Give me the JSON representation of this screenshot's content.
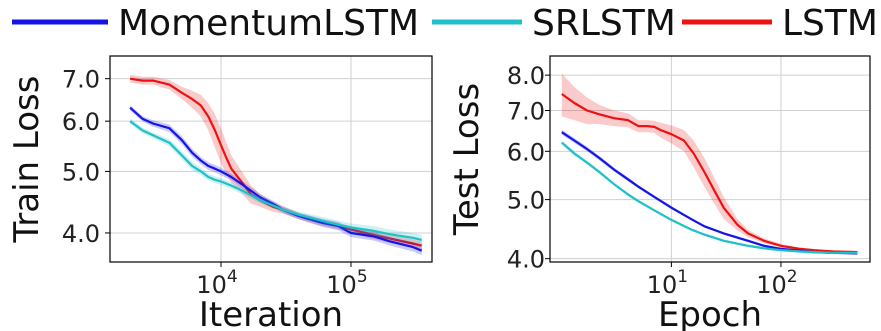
{
  "legend": [
    {
      "name": "MomentumLSTM",
      "color": "#1414e6"
    },
    {
      "name": "SRLSTM",
      "color": "#20c0c8"
    },
    {
      "name": "LSTM",
      "color": "#ee1111"
    }
  ],
  "chart_data": [
    {
      "type": "line",
      "xlabel": "Iteration",
      "ylabel": "Train Loss",
      "xscale": "log",
      "yscale": "log",
      "xlim": [
        1400,
        420000
      ],
      "ylim": [
        3.6,
        7.6
      ],
      "xticks": [
        {
          "value": 10000,
          "base": "10",
          "exp": "4"
        },
        {
          "value": 100000,
          "base": "10",
          "exp": "5"
        }
      ],
      "yticks": [
        {
          "value": 4.0,
          "label": "4.0"
        },
        {
          "value": 5.0,
          "label": "5.0"
        },
        {
          "value": 6.0,
          "label": "6.0"
        },
        {
          "value": 7.0,
          "label": "7.0"
        }
      ],
      "grid": true,
      "series": [
        {
          "name": "LSTM",
          "color": "#ee1111",
          "x": [
            2000,
            2500,
            3000,
            4000,
            5000,
            6000,
            7000,
            8000,
            9000,
            10000,
            11000,
            12000,
            14000,
            17000,
            20000,
            25000,
            30000,
            40000,
            60000,
            80000,
            100000,
            150000,
            200000,
            300000,
            350000
          ],
          "y": [
            7.0,
            6.95,
            6.95,
            6.85,
            6.65,
            6.5,
            6.35,
            6.1,
            5.8,
            5.5,
            5.25,
            5.05,
            4.85,
            4.6,
            4.5,
            4.4,
            4.35,
            4.25,
            4.15,
            4.1,
            4.05,
            3.97,
            3.92,
            3.85,
            3.82
          ],
          "band": [
            0.1,
            0.1,
            0.1,
            0.12,
            0.15,
            0.2,
            0.25,
            0.3,
            0.35,
            0.35,
            0.3,
            0.25,
            0.2,
            0.15,
            0.1,
            0.08,
            0.06,
            0.05,
            0.05,
            0.05,
            0.05,
            0.06,
            0.06,
            0.06,
            0.06
          ]
        },
        {
          "name": "MomentumLSTM",
          "color": "#1414e6",
          "x": [
            2000,
            2500,
            3000,
            4000,
            5000,
            6000,
            7000,
            8000,
            9000,
            10000,
            12000,
            15000,
            20000,
            25000,
            30000,
            40000,
            60000,
            80000,
            100000,
            150000,
            200000,
            300000,
            350000
          ],
          "y": [
            6.3,
            6.05,
            5.95,
            5.85,
            5.6,
            5.35,
            5.2,
            5.1,
            5.05,
            5.0,
            4.9,
            4.75,
            4.55,
            4.45,
            4.35,
            4.25,
            4.15,
            4.1,
            4.0,
            3.95,
            3.88,
            3.8,
            3.75
          ],
          "band": [
            0.06,
            0.06,
            0.07,
            0.08,
            0.08,
            0.08,
            0.07,
            0.07,
            0.07,
            0.07,
            0.06,
            0.06,
            0.06,
            0.05,
            0.05,
            0.05,
            0.06,
            0.06,
            0.06,
            0.06,
            0.06,
            0.06,
            0.06
          ]
        },
        {
          "name": "SRLSTM",
          "color": "#20c0c8",
          "x": [
            2000,
            2500,
            3000,
            4000,
            5000,
            6000,
            7000,
            8000,
            9000,
            10000,
            12000,
            15000,
            20000,
            25000,
            30000,
            40000,
            60000,
            80000,
            100000,
            150000,
            200000,
            300000,
            350000
          ],
          "y": [
            6.0,
            5.8,
            5.7,
            5.55,
            5.3,
            5.1,
            5.0,
            4.9,
            4.85,
            4.82,
            4.75,
            4.65,
            4.5,
            4.42,
            4.35,
            4.27,
            4.18,
            4.12,
            4.08,
            4.03,
            3.98,
            3.93,
            3.9
          ],
          "band": [
            0.06,
            0.06,
            0.06,
            0.07,
            0.08,
            0.08,
            0.07,
            0.06,
            0.06,
            0.06,
            0.06,
            0.06,
            0.05,
            0.05,
            0.05,
            0.05,
            0.06,
            0.06,
            0.06,
            0.07,
            0.07,
            0.07,
            0.07
          ]
        }
      ]
    },
    {
      "type": "line",
      "xlabel": "Epoch",
      "ylabel": "Test Loss",
      "xscale": "log",
      "yscale": "log",
      "xlim": [
        0.78,
        650
      ],
      "ylim": [
        3.95,
        8.6
      ],
      "xticks": [
        {
          "value": 10,
          "base": "10",
          "exp": "1"
        },
        {
          "value": 100,
          "base": "10",
          "exp": "2"
        }
      ],
      "yticks": [
        {
          "value": 4.0,
          "label": "4.0"
        },
        {
          "value": 5.0,
          "label": "5.0"
        },
        {
          "value": 6.0,
          "label": "6.0"
        },
        {
          "value": 7.0,
          "label": "7.0"
        },
        {
          "value": 8.0,
          "label": "8.0"
        }
      ],
      "grid": true,
      "series": [
        {
          "name": "LSTM",
          "color": "#ee1111",
          "x": [
            1,
            1.3,
            1.7,
            2.2,
            3,
            4,
            5,
            6,
            7,
            8,
            10,
            13,
            16,
            20,
            25,
            30,
            40,
            50,
            70,
            100,
            150,
            200,
            300,
            500
          ],
          "y": [
            7.45,
            7.2,
            7.0,
            6.9,
            6.8,
            6.75,
            6.6,
            6.6,
            6.58,
            6.5,
            6.4,
            6.25,
            5.95,
            5.55,
            5.15,
            4.85,
            4.55,
            4.4,
            4.28,
            4.2,
            4.15,
            4.13,
            4.11,
            4.1
          ],
          "band": [
            0.6,
            0.45,
            0.35,
            0.25,
            0.2,
            0.18,
            0.15,
            0.15,
            0.15,
            0.18,
            0.22,
            0.25,
            0.3,
            0.3,
            0.25,
            0.2,
            0.1,
            0.06,
            0.04,
            0.03,
            0.02,
            0.02,
            0.02,
            0.02
          ]
        },
        {
          "name": "MomentumLSTM",
          "color": "#1414e6",
          "x": [
            1,
            1.3,
            1.7,
            2.2,
            3,
            4,
            5,
            7,
            10,
            15,
            20,
            30,
            50,
            70,
            100,
            150,
            200,
            300,
            500
          ],
          "y": [
            6.45,
            6.25,
            6.05,
            5.85,
            5.6,
            5.4,
            5.25,
            5.05,
            4.85,
            4.65,
            4.52,
            4.4,
            4.28,
            4.2,
            4.15,
            4.12,
            4.1,
            4.09,
            4.08
          ],
          "band": [
            0.06,
            0.06,
            0.05,
            0.05,
            0.04,
            0.04,
            0.03,
            0.03,
            0.03,
            0.02,
            0.02,
            0.02,
            0.02,
            0.02,
            0.02,
            0.02,
            0.02,
            0.02,
            0.02
          ]
        },
        {
          "name": "SRLSTM",
          "color": "#20c0c8",
          "x": [
            1,
            1.3,
            1.7,
            2.2,
            3,
            4,
            5,
            7,
            10,
            15,
            20,
            30,
            50,
            70,
            100,
            150,
            200,
            300,
            500
          ],
          "y": [
            6.2,
            5.95,
            5.75,
            5.55,
            5.3,
            5.1,
            4.97,
            4.8,
            4.63,
            4.47,
            4.38,
            4.28,
            4.2,
            4.16,
            4.13,
            4.11,
            4.1,
            4.09,
            4.09
          ],
          "band": [
            0.05,
            0.05,
            0.04,
            0.04,
            0.03,
            0.03,
            0.03,
            0.02,
            0.02,
            0.02,
            0.02,
            0.02,
            0.02,
            0.02,
            0.02,
            0.02,
            0.02,
            0.02,
            0.02
          ]
        }
      ]
    }
  ]
}
